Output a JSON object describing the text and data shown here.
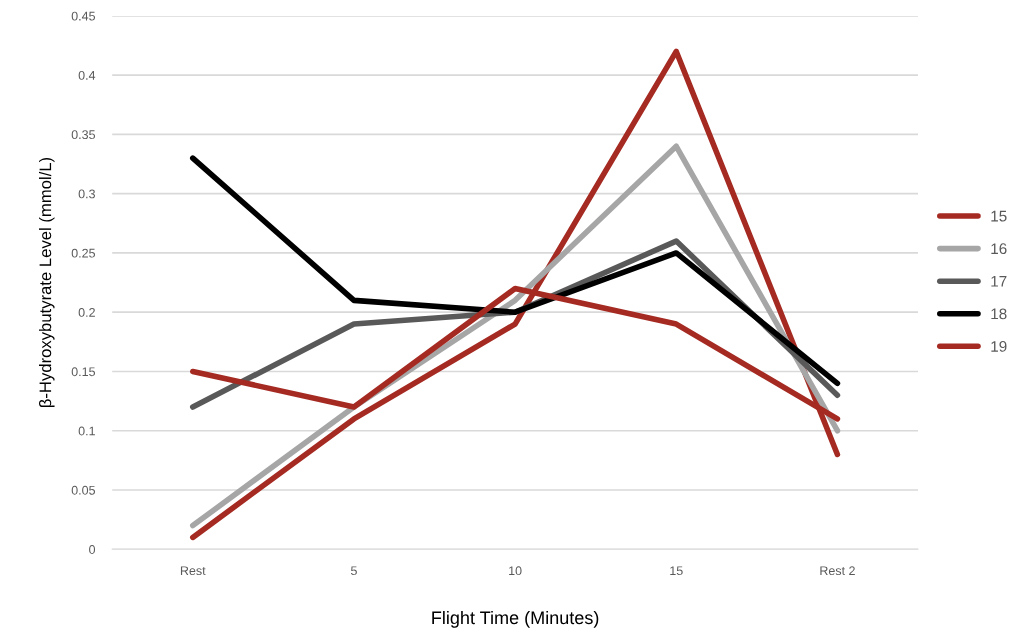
{
  "chart_data": {
    "type": "line",
    "xlabel": "Flight Time (Minutes)",
    "ylabel": "β-Hydroxybutyrate Level (mmol/L)",
    "categories": [
      "Rest",
      "5",
      "10",
      "15",
      "Rest 2"
    ],
    "series": [
      {
        "name": "15",
        "color": "#a52a22",
        "values": [
          0.01,
          0.11,
          0.19,
          0.42,
          0.08
        ]
      },
      {
        "name": "16",
        "color": "#a6a6a6",
        "values": [
          0.02,
          0.12,
          0.21,
          0.34,
          0.1
        ]
      },
      {
        "name": "17",
        "color": "#595959",
        "values": [
          0.12,
          0.19,
          0.2,
          0.26,
          0.13
        ]
      },
      {
        "name": "18",
        "color": "#000000",
        "values": [
          0.33,
          0.21,
          0.2,
          0.25,
          0.14
        ]
      },
      {
        "name": "19",
        "color": "#a52a22",
        "values": [
          0.15,
          0.12,
          0.22,
          0.19,
          0.11
        ]
      }
    ],
    "ylim": [
      0,
      0.45
    ],
    "yticks": [
      0,
      0.05,
      0.1,
      0.15,
      0.2,
      0.25,
      0.3,
      0.35,
      0.4,
      0.45
    ],
    "grid": "y",
    "legend": "right",
    "marker": "none",
    "line_style": "solid"
  }
}
